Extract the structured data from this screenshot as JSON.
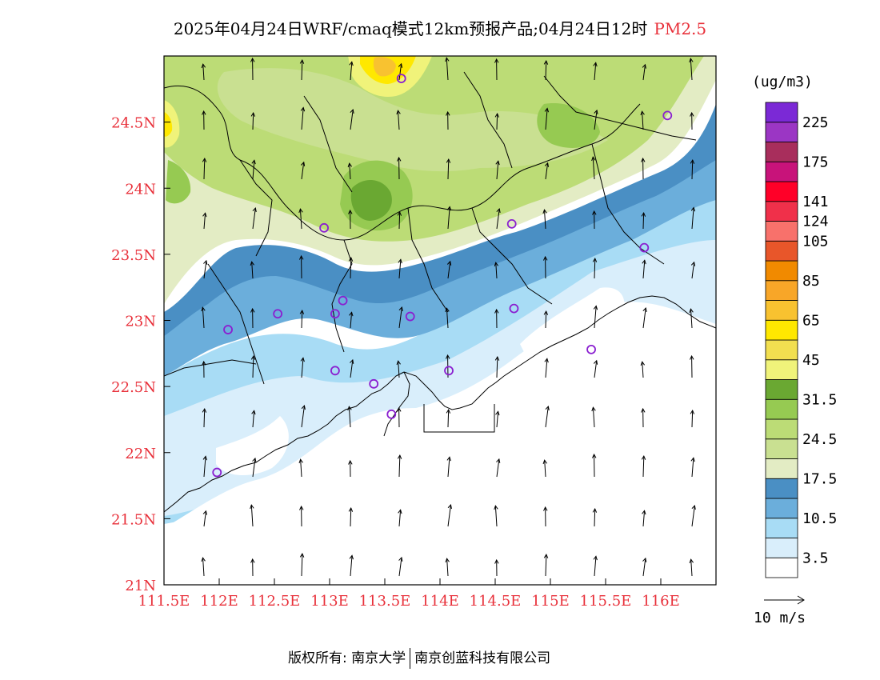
{
  "title": {
    "main": "2025年04月24日WRF/cmaq模式12km预报产品;04月24日12时",
    "pollutant": "PM2.5"
  },
  "map": {
    "lon_range": [
      111.5,
      116.5
    ],
    "lat_range": [
      21.0,
      25.0
    ],
    "x_ticks": [
      {
        "lon": 111.5,
        "label": "111.5E"
      },
      {
        "lon": 112.0,
        "label": "112E"
      },
      {
        "lon": 112.5,
        "label": "112.5E"
      },
      {
        "lon": 113.0,
        "label": "113E"
      },
      {
        "lon": 113.5,
        "label": "113.5E"
      },
      {
        "lon": 114.0,
        "label": "114E"
      },
      {
        "lon": 114.5,
        "label": "114.5E"
      },
      {
        "lon": 115.0,
        "label": "115E"
      },
      {
        "lon": 115.5,
        "label": "115.5E"
      },
      {
        "lon": 116.0,
        "label": "116E"
      }
    ],
    "y_ticks": [
      {
        "lat": 21.0,
        "label": "21N"
      },
      {
        "lat": 21.5,
        "label": "21.5N"
      },
      {
        "lat": 22.0,
        "label": "22N"
      },
      {
        "lat": 22.5,
        "label": "22.5N"
      },
      {
        "lat": 23.0,
        "label": "23N"
      },
      {
        "lat": 23.5,
        "label": "23.5N"
      },
      {
        "lat": 24.0,
        "label": "24N"
      },
      {
        "lat": 24.5,
        "label": "24.5N"
      }
    ],
    "tick_color": "#e8303a"
  },
  "legend": {
    "unit": "(ug/m3)",
    "colors": [
      "#ffffff",
      "#d9eefb",
      "#a8dcf5",
      "#6baedb",
      "#4a8fc4",
      "#e3ecc4",
      "#c9e091",
      "#bcdc76",
      "#96ca52",
      "#6aa832",
      "#f0f37a",
      "#f2df50",
      "#ffe800",
      "#f8c230",
      "#f8a628",
      "#f18a00",
      "#e8562a",
      "#f8716b",
      "#f0304a",
      "#ff0028",
      "#c8137a",
      "#a82e5c",
      "#9b36c4",
      "#7b29d6"
    ],
    "labels": [
      {
        "index": 1,
        "text": "3.5"
      },
      {
        "index": 3,
        "text": "10.5"
      },
      {
        "index": 5,
        "text": "17.5"
      },
      {
        "index": 7,
        "text": "24.5"
      },
      {
        "index": 9,
        "text": "31.5"
      },
      {
        "index": 11,
        "text": "45"
      },
      {
        "index": 13,
        "text": "65"
      },
      {
        "index": 15,
        "text": "85"
      },
      {
        "index": 17,
        "text": "105"
      },
      {
        "index": 18,
        "text": "124"
      },
      {
        "index": 19,
        "text": "141"
      },
      {
        "index": 21,
        "text": "175"
      },
      {
        "index": 23,
        "text": "225"
      }
    ]
  },
  "wind_reference": {
    "label": "10 m/s"
  },
  "stations": [
    {
      "lon": 113.65,
      "lat": 24.83
    },
    {
      "lon": 116.06,
      "lat": 24.55
    },
    {
      "lon": 115.85,
      "lat": 23.55
    },
    {
      "lon": 114.65,
      "lat": 23.73
    },
    {
      "lon": 112.95,
      "lat": 23.7
    },
    {
      "lon": 113.12,
      "lat": 23.15
    },
    {
      "lon": 113.05,
      "lat": 23.05
    },
    {
      "lon": 113.73,
      "lat": 23.03
    },
    {
      "lon": 112.53,
      "lat": 23.05
    },
    {
      "lon": 112.08,
      "lat": 22.93
    },
    {
      "lon": 113.4,
      "lat": 22.52
    },
    {
      "lon": 113.05,
      "lat": 22.62
    },
    {
      "lon": 114.08,
      "lat": 22.62
    },
    {
      "lon": 113.56,
      "lat": 22.29
    },
    {
      "lon": 114.67,
      "lat": 23.09
    },
    {
      "lon": 115.37,
      "lat": 22.78
    },
    {
      "lon": 111.98,
      "lat": 21.85
    }
  ],
  "footer": {
    "left": "版权所有: 南京大学",
    "right": "南京创蓝科技有限公司"
  }
}
